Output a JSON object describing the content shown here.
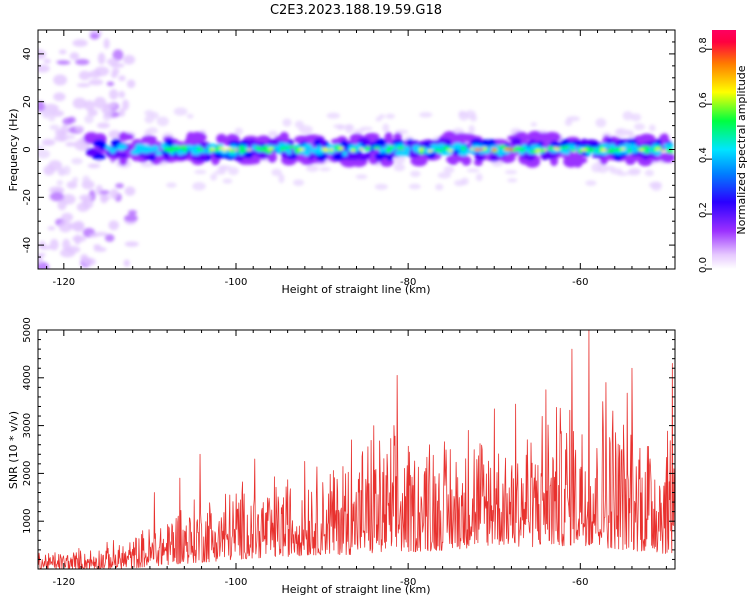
{
  "title": "C2E3.2023.188.19.59.G18",
  "colors": {
    "snr_line": "#e8312e",
    "axis": "#000000",
    "spectral_band": [
      "#9b30ff",
      "#5a00ff",
      "#0000ff",
      "#00d4ff",
      "#00ff55",
      "#ffff00",
      "#ff8000",
      "#ff0033"
    ]
  },
  "chart_data": [
    {
      "type": "heatmap",
      "name": "spectrogram",
      "xlabel": "Height of straight line (km)",
      "ylabel": "Frequency (Hz)",
      "xlim": [
        -123,
        -49
      ],
      "ylim": [
        -50,
        50
      ],
      "x_ticks": [
        -120,
        -100,
        -80,
        -60
      ],
      "y_ticks": [
        -40,
        -20,
        0,
        20,
        40
      ],
      "band_center_hz": 0,
      "colorbar": {
        "label": "Normalized spectral amplitude",
        "range": [
          0.0,
          0.87
        ],
        "ticks": [
          0.0,
          0.2,
          0.4,
          0.6,
          0.8
        ],
        "colormap": "rainbow"
      }
    },
    {
      "type": "line",
      "name": "snr",
      "xlabel": "Height of straight line (km)",
      "ylabel": "SNR (10 * v/v)",
      "xlim": [
        -123,
        -49
      ],
      "ylim": [
        0,
        5000
      ],
      "x_ticks": [
        -120,
        -100,
        -80,
        -60
      ],
      "y_ticks": [
        1000,
        2000,
        3000,
        4000,
        5000
      ],
      "envelope": [
        {
          "x": -123,
          "low": 0,
          "high": 400
        },
        {
          "x": -117,
          "low": 0,
          "high": 500
        },
        {
          "x": -113,
          "low": 0,
          "high": 700
        },
        {
          "x": -110,
          "low": 50,
          "high": 1000
        },
        {
          "x": -107,
          "low": 100,
          "high": 1600
        },
        {
          "x": -103,
          "low": 150,
          "high": 1800
        },
        {
          "x": -100,
          "low": 200,
          "high": 2000
        },
        {
          "x": -95,
          "low": 250,
          "high": 2200
        },
        {
          "x": -90,
          "low": 300,
          "high": 2500
        },
        {
          "x": -85,
          "low": 300,
          "high": 3000
        },
        {
          "x": -80,
          "low": 350,
          "high": 3200
        },
        {
          "x": -75,
          "low": 400,
          "high": 3100
        },
        {
          "x": -70,
          "low": 500,
          "high": 3300
        },
        {
          "x": -65,
          "low": 450,
          "high": 3600
        },
        {
          "x": -60,
          "low": 500,
          "high": 4100
        },
        {
          "x": -55,
          "low": 400,
          "high": 4000
        },
        {
          "x": -49,
          "low": 300,
          "high": 3600
        }
      ],
      "peaks": [
        {
          "x": -109.5,
          "y": 1600
        },
        {
          "x": -106.5,
          "y": 1900
        },
        {
          "x": -104.2,
          "y": 2400
        },
        {
          "x": -97.8,
          "y": 2300
        },
        {
          "x": -92,
          "y": 2250
        },
        {
          "x": -86.6,
          "y": 2700
        },
        {
          "x": -84,
          "y": 3000
        },
        {
          "x": -81.3,
          "y": 4050
        },
        {
          "x": -77.5,
          "y": 2600
        },
        {
          "x": -73,
          "y": 2900
        },
        {
          "x": -70,
          "y": 3350
        },
        {
          "x": -67.5,
          "y": 3450
        },
        {
          "x": -64,
          "y": 3750
        },
        {
          "x": -61,
          "y": 4600
        },
        {
          "x": -59,
          "y": 5000
        },
        {
          "x": -57,
          "y": 3900
        },
        {
          "x": -54,
          "y": 4200
        },
        {
          "x": -49.3,
          "y": 4300
        }
      ]
    }
  ]
}
